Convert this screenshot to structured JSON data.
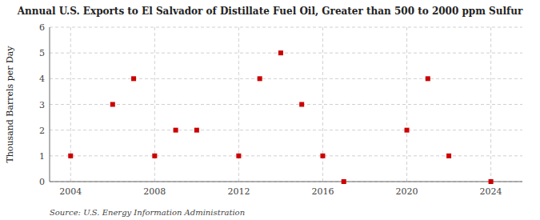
{
  "chart_data": {
    "type": "scatter",
    "title": "Annual U.S. Exports to El Salvador of Distillate Fuel Oil, Greater than 500 to 2000 ppm Sulfur",
    "y_label": "Thousand Barrels per Day",
    "source": "Source: U.S. Energy Information Administration",
    "x": [
      2004,
      2006,
      2007,
      2008,
      2009,
      2010,
      2012,
      2013,
      2014,
      2015,
      2016,
      2017,
      2020,
      2021,
      2022,
      2024
    ],
    "values": [
      1.0,
      3.0,
      4.0,
      1.0,
      2.0,
      2.0,
      1.0,
      4.0,
      5.0,
      3.0,
      1.0,
      0.0,
      2.0,
      4.0,
      1.0,
      0.0
    ],
    "color": "#cc0000",
    "marker": "square",
    "xlim": [
      2003,
      2025.5
    ],
    "ylim": [
      0,
      6
    ],
    "xticks": [
      2004,
      2008,
      2012,
      2016,
      2020,
      2024
    ],
    "yticks": [
      0,
      1,
      2,
      3,
      4,
      5,
      6
    ],
    "grid": true
  }
}
